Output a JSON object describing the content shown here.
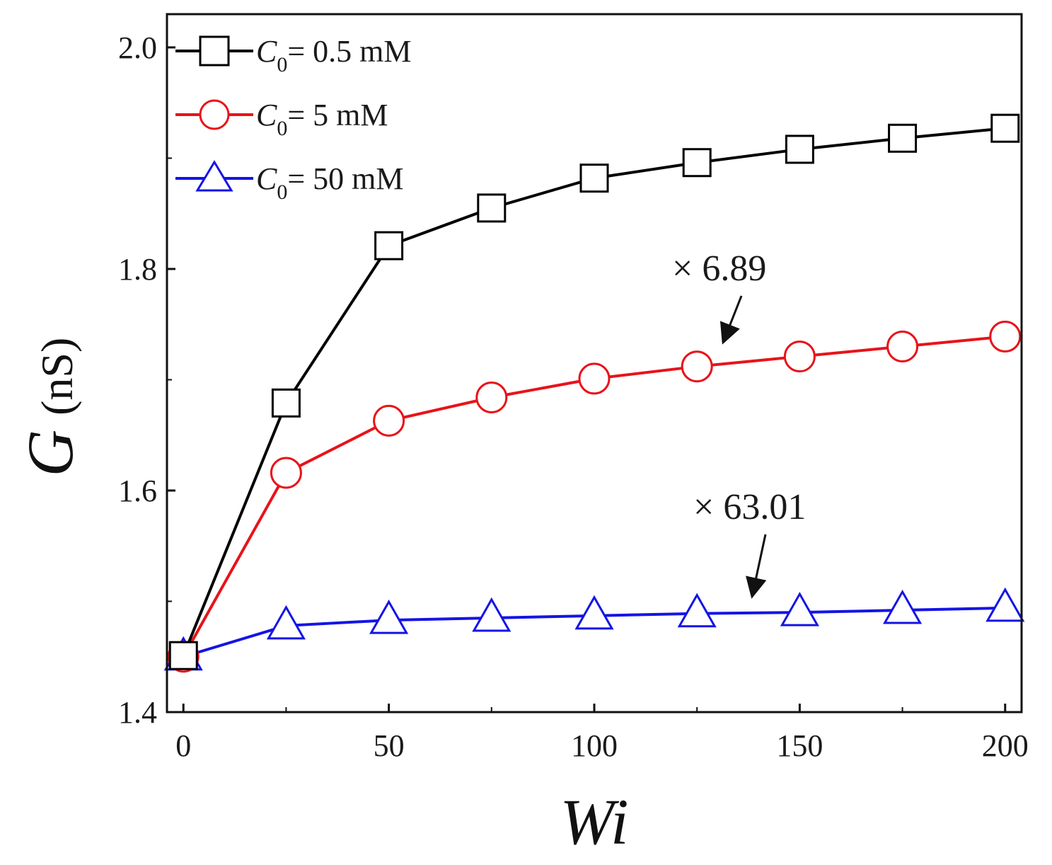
{
  "chart_data": {
    "type": "line",
    "title": "",
    "xlabel": "Wi",
    "ylabel_symbol": "G",
    "ylabel_unit": "(nS)",
    "xlim": [
      -4,
      204
    ],
    "ylim": [
      1.4,
      2.03
    ],
    "xticks": [
      0,
      50,
      100,
      150,
      200
    ],
    "xtick_labels": [
      "0",
      "50",
      "100",
      "150",
      "200"
    ],
    "yticks": [
      1.4,
      1.6,
      1.8,
      2.0
    ],
    "ytick_labels": [
      "1.4",
      "1.6",
      "1.8",
      "2.0"
    ],
    "grid": false,
    "legend_position": "top-left",
    "x": [
      0,
      25,
      50,
      75,
      100,
      125,
      150,
      175,
      200
    ],
    "series": [
      {
        "name": "C0 = 0.5 mM",
        "legend_symbol": "C",
        "legend_subscript": "0",
        "legend_value": "= 0.5 mM",
        "color": "#000000",
        "marker": "square",
        "values": [
          1.451,
          1.679,
          1.821,
          1.855,
          1.882,
          1.896,
          1.908,
          1.918,
          1.927
        ]
      },
      {
        "name": "C0 = 5 mM",
        "legend_symbol": "C",
        "legend_subscript": "0",
        "legend_value": "= 5 mM",
        "color": "#e8131a",
        "marker": "circle",
        "values": [
          1.45,
          1.616,
          1.663,
          1.684,
          1.701,
          1.712,
          1.721,
          1.73,
          1.739
        ]
      },
      {
        "name": "C0 = 50 mM",
        "legend_symbol": "C",
        "legend_subscript": "0",
        "legend_value": "= 50 mM",
        "color": "#1414e6",
        "marker": "triangle",
        "values": [
          1.45,
          1.478,
          1.483,
          1.485,
          1.487,
          1.489,
          1.49,
          1.492,
          1.494
        ]
      }
    ],
    "annotations": [
      {
        "text": "× 6.89",
        "target_series": "C0 = 5 mM",
        "target_x": 131,
        "target_y": 1.72
      },
      {
        "text": "× 63.01",
        "target_series": "C0 = 50 mM",
        "target_x": 138,
        "target_y": 1.497
      }
    ]
  }
}
